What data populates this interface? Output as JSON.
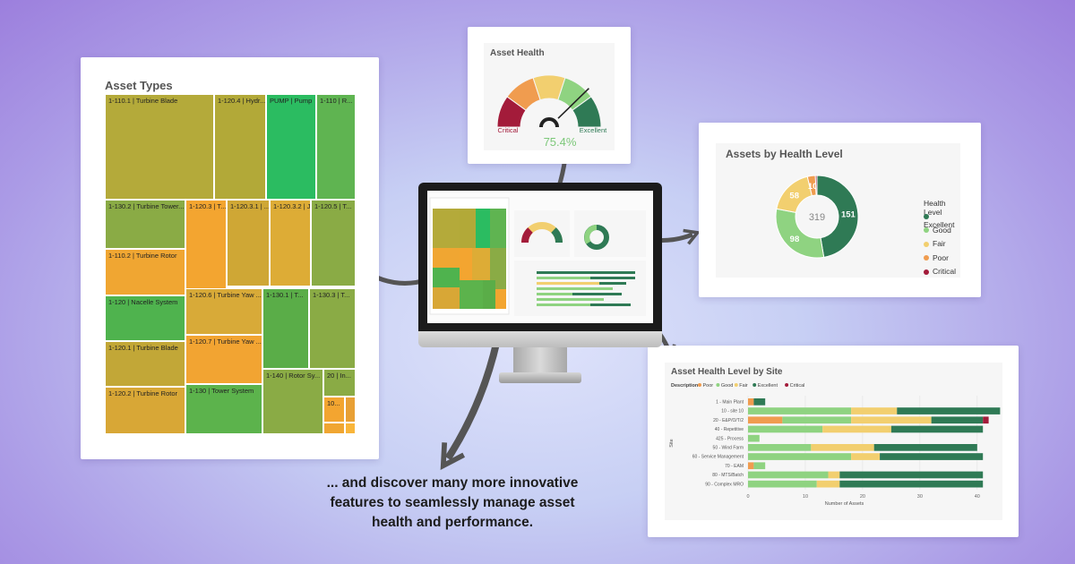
{
  "tagline": {
    "line1": "... and discover many more innovative",
    "line2": "features to seamlessly manage asset",
    "line3": "health and performance."
  },
  "asset_types": {
    "title": "Asset Types",
    "tiles": [
      {
        "label": "1-110.1 | Turbine Blade",
        "color": "#b4aa3a"
      },
      {
        "label": "1-120.4 | Hydr...",
        "color": "#b2a938"
      },
      {
        "label": "PUMP | Pump",
        "color": "#2bbc61"
      },
      {
        "label": "1-110 | R...",
        "color": "#5fb451"
      },
      {
        "label": "1-130.2 | Turbine Tower...",
        "color": "#8aab45"
      },
      {
        "label": "1-120.3 | T...",
        "color": "#f3a530"
      },
      {
        "label": "1-120.3.1 | ...",
        "color": "#cfa735"
      },
      {
        "label": "1-120.3.2 | J...",
        "color": "#ddac36"
      },
      {
        "label": "1-120.5 | T...",
        "color": "#8aab45"
      },
      {
        "label": "1-110.2 | Turbine Rotor",
        "color": "#f0a632"
      },
      {
        "label": "1-120.6 | Turbine Yaw ...",
        "color": "#d8aa38"
      },
      {
        "label": "1-130.1 | T...",
        "color": "#5aad48"
      },
      {
        "label": "1-130.3 | T...",
        "color": "#8aab45"
      },
      {
        "label": "1-120 | Nacelle System",
        "color": "#4fb34e"
      },
      {
        "label": "1-120.7 | Turbine Yaw ...",
        "color": "#f2a432"
      },
      {
        "label": "1-120.1 | Turbine Blade",
        "color": "#c2a737"
      },
      {
        "label": "1-140 | Rotor Sy...",
        "color": "#8aab45"
      },
      {
        "label": "20 | In...",
        "color": "#8aab45"
      },
      {
        "label": "1-130 | Tower System",
        "color": "#5cb34c"
      },
      {
        "label": "10...",
        "color": "#f3a530"
      },
      {
        "label": "1-120.2 | Turbine Rotor",
        "color": "#d8a736"
      },
      {
        "label": "",
        "color": "#e8a035"
      },
      {
        "label": "",
        "color": "#f0a632"
      },
      {
        "label": "",
        "color": "#f9b53a"
      }
    ]
  },
  "asset_health": {
    "title": "Asset Health",
    "value": 75.4,
    "value_label": "75.4%",
    "min_label": "Critical",
    "max_label": "Excellent",
    "band_colors": [
      "#a31b3a",
      "#f09c4f",
      "#f2cf6f",
      "#8fd381",
      "#2f7a55"
    ]
  },
  "chart_data": [
    {
      "type": "pie",
      "title": "Assets by Health Level",
      "center_label": "319",
      "legend_title": "Health Level",
      "legend_position": "right",
      "categories": [
        "Excellent",
        "Good",
        "Fair",
        "Poor",
        "Critical"
      ],
      "values": [
        151,
        98,
        58,
        10,
        2
      ],
      "data_labels": [
        "151",
        "98",
        "58",
        "10",
        ""
      ],
      "colors": [
        "#2f7a55",
        "#8fd381",
        "#f2cf6f",
        "#f09c4f",
        "#a31b3a"
      ]
    },
    {
      "type": "bar",
      "title": "Asset Health Level by Site",
      "legend_title": "Description",
      "legend_position": "top-left",
      "ylabel": "Site",
      "xlabel": "Number of Assets",
      "categories": [
        "1 - Main Plant",
        "10 - site 10",
        "20 - E&P/O/T/2",
        "40 - Repetitive",
        "425 - Process",
        "50 - Wind Farm",
        "60 - Service Management",
        "70 - EAM",
        "80 - MTS/Batch",
        "90 - Complex MRO"
      ],
      "series": [
        {
          "name": "Poor",
          "values": [
            1,
            0,
            6,
            0,
            0,
            0,
            0,
            1,
            0,
            0
          ]
        },
        {
          "name": "Good",
          "values": [
            0,
            18,
            12,
            13,
            2,
            11,
            18,
            2,
            14,
            12
          ]
        },
        {
          "name": "Fair",
          "values": [
            0,
            8,
            14,
            12,
            0,
            11,
            5,
            0,
            2,
            4
          ]
        },
        {
          "name": "Excellent",
          "values": [
            2,
            18,
            9,
            16,
            0,
            18,
            18,
            0,
            25,
            25
          ]
        },
        {
          "name": "Critical",
          "values": [
            0,
            0,
            1,
            0,
            0,
            0,
            0,
            0,
            0,
            0
          ]
        }
      ],
      "colors": [
        "#f09c4f",
        "#8fd381",
        "#f2cf6f",
        "#2f7a55",
        "#a31b3a"
      ],
      "xticks": [
        "0",
        "10",
        "20",
        "30",
        "40"
      ],
      "xlim": [
        0,
        43
      ]
    }
  ]
}
